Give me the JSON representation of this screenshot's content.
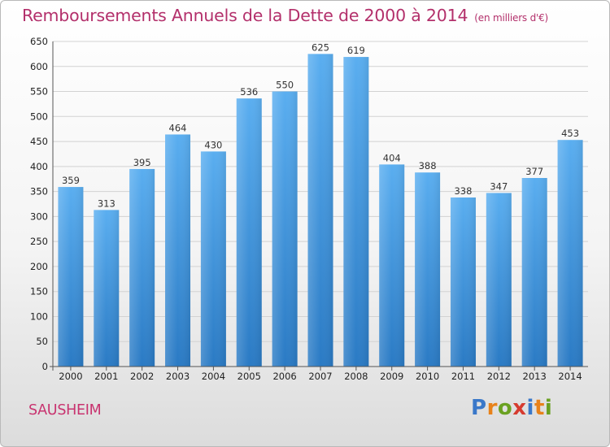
{
  "header": {
    "title": "Remboursements Annuels de la Dette de 2000 à 2014",
    "subtitle": "(en milliers d'€)"
  },
  "footer": {
    "city": "SAUSHEIM",
    "logo_text": "Proxiti",
    "logo_colors": [
      "#3a78c9",
      "#e8821a",
      "#6aa121",
      "#d63b2f",
      "#3a78c9",
      "#e8821a",
      "#6aa121"
    ]
  },
  "chart_data": {
    "type": "bar",
    "title": "Remboursements Annuels de la Dette de 2000 à 2014",
    "subtitle": "(en milliers d'€)",
    "xlabel": "",
    "ylabel": "",
    "categories": [
      "2000",
      "2001",
      "2002",
      "2003",
      "2004",
      "2005",
      "2006",
      "2007",
      "2008",
      "2009",
      "2010",
      "2011",
      "2012",
      "2013",
      "2014"
    ],
    "values": [
      359,
      313,
      395,
      464,
      430,
      536,
      550,
      625,
      619,
      404,
      388,
      338,
      347,
      377,
      453
    ],
    "ylim": [
      0,
      650
    ],
    "yticks": [
      0,
      50,
      100,
      150,
      200,
      250,
      300,
      350,
      400,
      450,
      500,
      550,
      600,
      650
    ],
    "grid": true,
    "bar_color": "#4d9ee0",
    "legend": "none"
  }
}
